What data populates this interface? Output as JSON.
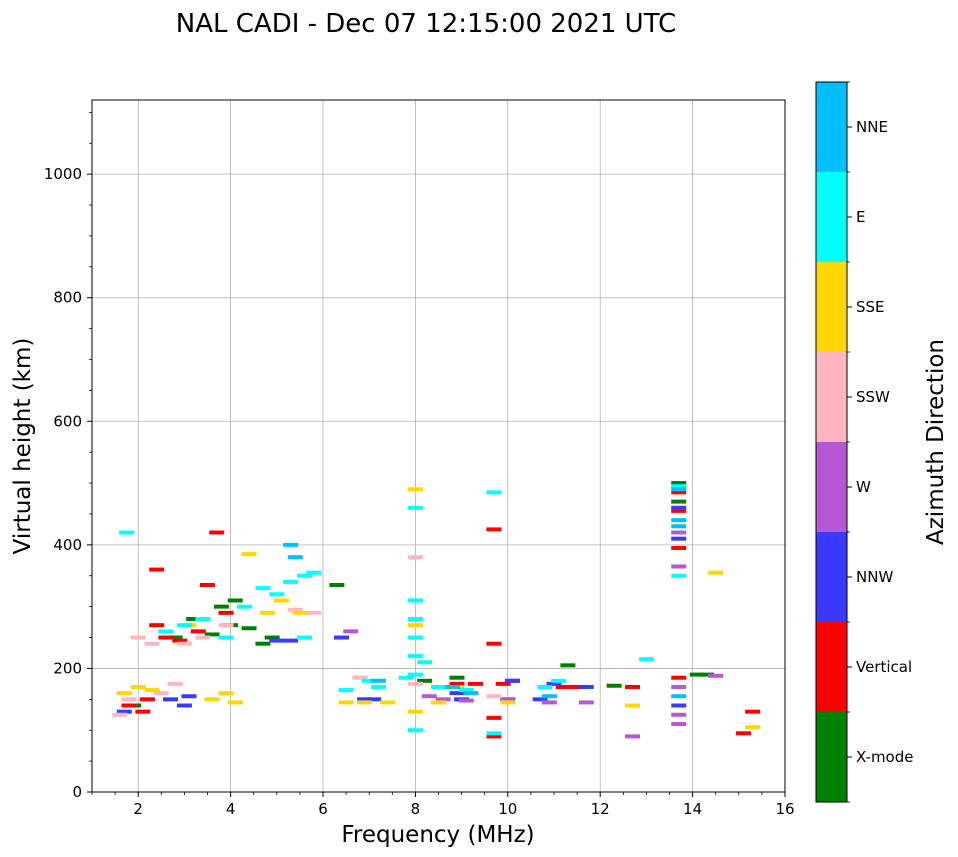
{
  "chart_data": {
    "type": "scatter",
    "title": "NAL CADI - Dec 07 12:15:00 2021 UTC",
    "xlabel": "Frequency (MHz)",
    "ylabel": "Virtual height (km)",
    "xlim": [
      1,
      16
    ],
    "ylim": [
      0,
      1120
    ],
    "xticks": [
      2,
      4,
      6,
      8,
      10,
      12,
      14,
      16
    ],
    "yticks": [
      0,
      200,
      400,
      600,
      800,
      1000
    ],
    "grid": true,
    "colorbar": {
      "label": "Azimuth Direction",
      "categories": [
        "X-mode",
        "Vertical",
        "NNW",
        "W",
        "SSW",
        "SSE",
        "E",
        "NNE"
      ],
      "colors": [
        "#008000",
        "#ff0000",
        "#3a3aff",
        "#b658d6",
        "#ffb6c1",
        "#ffd700",
        "#00ffff",
        "#00bfff"
      ]
    },
    "series": [
      {
        "name": "X-mode",
        "points": [
          [
            1.9,
            140
          ],
          [
            2.8,
            250
          ],
          [
            3.2,
            280
          ],
          [
            3.6,
            255
          ],
          [
            3.8,
            300
          ],
          [
            4.0,
            270
          ],
          [
            4.1,
            310
          ],
          [
            4.4,
            265
          ],
          [
            4.7,
            240
          ],
          [
            4.9,
            250
          ],
          [
            6.3,
            335
          ],
          [
            8.2,
            180
          ],
          [
            8.9,
            185
          ],
          [
            10.0,
            150
          ],
          [
            11.3,
            205
          ],
          [
            12.3,
            172
          ],
          [
            13.7,
            500
          ],
          [
            13.7,
            470
          ],
          [
            14.1,
            190
          ],
          [
            14.3,
            190
          ]
        ]
      },
      {
        "name": "Vertical",
        "points": [
          [
            1.8,
            140
          ],
          [
            2.1,
            130
          ],
          [
            2.2,
            150
          ],
          [
            2.4,
            270
          ],
          [
            2.4,
            360
          ],
          [
            2.6,
            250
          ],
          [
            2.9,
            245
          ],
          [
            3.3,
            260
          ],
          [
            3.5,
            335
          ],
          [
            3.7,
            420
          ],
          [
            3.9,
            290
          ],
          [
            8.9,
            175
          ],
          [
            9.3,
            175
          ],
          [
            9.7,
            240
          ],
          [
            9.7,
            425
          ],
          [
            9.7,
            120
          ],
          [
            9.7,
            90
          ],
          [
            9.9,
            175
          ],
          [
            10.1,
            180
          ],
          [
            11.2,
            170
          ],
          [
            11.5,
            170
          ],
          [
            12.7,
            170
          ],
          [
            13.7,
            485
          ],
          [
            13.7,
            455
          ],
          [
            13.7,
            395
          ],
          [
            13.7,
            185
          ],
          [
            15.1,
            95
          ],
          [
            15.3,
            130
          ]
        ]
      },
      {
        "name": "NNW",
        "points": [
          [
            1.7,
            130
          ],
          [
            2.7,
            150
          ],
          [
            3.0,
            140
          ],
          [
            3.1,
            155
          ],
          [
            5.0,
            245
          ],
          [
            5.3,
            245
          ],
          [
            6.4,
            250
          ],
          [
            6.9,
            150
          ],
          [
            7.1,
            150
          ],
          [
            8.9,
            160
          ],
          [
            9.0,
            150
          ],
          [
            10.1,
            180
          ],
          [
            10.7,
            150
          ],
          [
            11.0,
            175
          ],
          [
            11.7,
            170
          ],
          [
            13.7,
            460
          ],
          [
            13.7,
            410
          ],
          [
            13.7,
            140
          ]
        ]
      },
      {
        "name": "W",
        "points": [
          [
            6.6,
            260
          ],
          [
            8.3,
            155
          ],
          [
            8.6,
            150
          ],
          [
            9.1,
            148
          ],
          [
            10.0,
            150
          ],
          [
            10.9,
            145
          ],
          [
            11.7,
            145
          ],
          [
            12.7,
            90
          ],
          [
            13.7,
            365
          ],
          [
            13.7,
            420
          ],
          [
            13.7,
            170
          ],
          [
            13.7,
            125
          ],
          [
            13.7,
            110
          ],
          [
            14.5,
            188
          ]
        ]
      },
      {
        "name": "SSW",
        "points": [
          [
            1.6,
            125
          ],
          [
            1.8,
            150
          ],
          [
            2.0,
            250
          ],
          [
            2.3,
            240
          ],
          [
            2.5,
            160
          ],
          [
            2.8,
            175
          ],
          [
            3.0,
            240
          ],
          [
            3.4,
            250
          ],
          [
            3.9,
            270
          ],
          [
            5.4,
            295
          ],
          [
            5.8,
            290
          ],
          [
            6.8,
            185
          ],
          [
            8.0,
            380
          ],
          [
            8.0,
            175
          ],
          [
            9.7,
            155
          ]
        ]
      },
      {
        "name": "SSE",
        "points": [
          [
            1.7,
            160
          ],
          [
            2.0,
            170
          ],
          [
            2.3,
            165
          ],
          [
            3.1,
            270
          ],
          [
            3.6,
            150
          ],
          [
            3.9,
            160
          ],
          [
            4.1,
            145
          ],
          [
            4.4,
            385
          ],
          [
            4.8,
            290
          ],
          [
            5.1,
            310
          ],
          [
            5.5,
            290
          ],
          [
            6.5,
            145
          ],
          [
            6.9,
            145
          ],
          [
            7.4,
            145
          ],
          [
            8.0,
            490
          ],
          [
            8.0,
            270
          ],
          [
            8.0,
            130
          ],
          [
            8.5,
            145
          ],
          [
            8.9,
            170
          ],
          [
            10.0,
            145
          ],
          [
            12.7,
            140
          ],
          [
            14.5,
            355
          ],
          [
            15.3,
            105
          ]
        ]
      },
      {
        "name": "E",
        "points": [
          [
            1.75,
            420
          ],
          [
            2.6,
            260
          ],
          [
            3.0,
            270
          ],
          [
            3.4,
            280
          ],
          [
            3.9,
            250
          ],
          [
            4.3,
            300
          ],
          [
            4.7,
            330
          ],
          [
            5.0,
            320
          ],
          [
            5.3,
            340
          ],
          [
            5.6,
            350
          ],
          [
            5.8,
            355
          ],
          [
            5.6,
            250
          ],
          [
            6.5,
            165
          ],
          [
            7.0,
            180
          ],
          [
            7.2,
            170
          ],
          [
            7.8,
            185
          ],
          [
            8.0,
            460
          ],
          [
            8.0,
            310
          ],
          [
            8.0,
            280
          ],
          [
            8.0,
            250
          ],
          [
            8.0,
            220
          ],
          [
            8.0,
            190
          ],
          [
            8.0,
            100
          ],
          [
            8.2,
            210
          ],
          [
            8.5,
            170
          ],
          [
            9.1,
            165
          ],
          [
            9.7,
            485
          ],
          [
            9.7,
            95
          ],
          [
            10.8,
            170
          ],
          [
            11.1,
            180
          ],
          [
            13.0,
            215
          ],
          [
            13.7,
            350
          ],
          [
            13.7,
            495
          ]
        ]
      },
      {
        "name": "NNE",
        "points": [
          [
            5.3,
            400
          ],
          [
            5.4,
            380
          ],
          [
            7.2,
            180
          ],
          [
            8.8,
            170
          ],
          [
            9.2,
            160
          ],
          [
            10.9,
            155
          ],
          [
            13.7,
            490
          ],
          [
            13.7,
            440
          ],
          [
            13.7,
            430
          ],
          [
            13.7,
            155
          ]
        ]
      }
    ]
  }
}
